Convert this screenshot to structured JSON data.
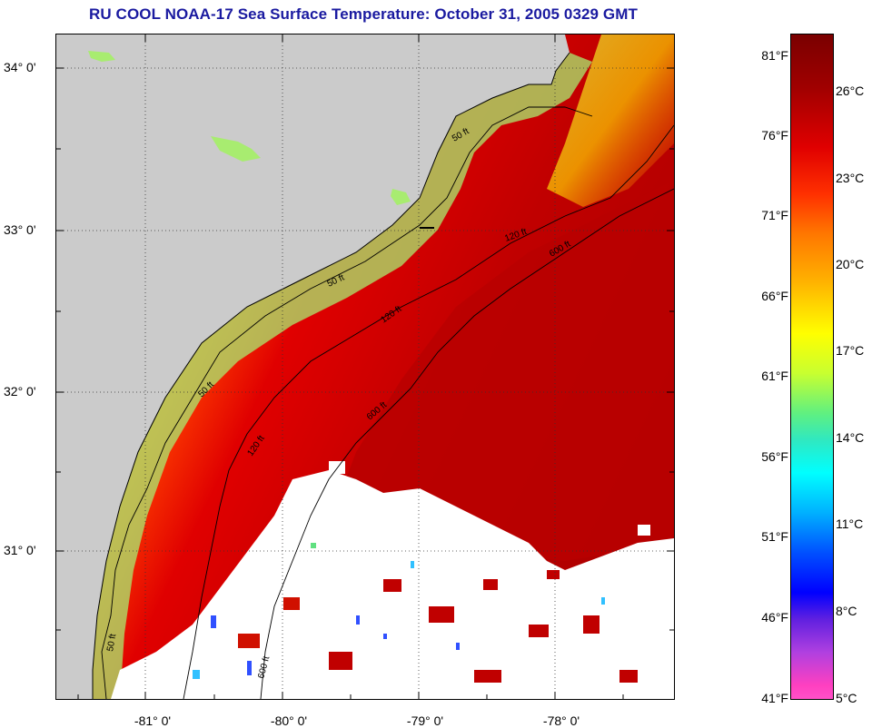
{
  "title": "RU COOL  NOAA-17  Sea Surface Temperature:  October 31, 2005 0329 GMT",
  "map": {
    "lat_labels": [
      "34° 0'",
      "33° 0'",
      "32° 0'",
      "31° 0'"
    ],
    "lon_labels": [
      "-81° 0'",
      "-80° 0'",
      "-79° 0'",
      "-78° 0'"
    ],
    "isobath_labels": [
      "50 ft",
      "120 ft",
      "600 ft"
    ],
    "land_color": "#cbcbcb",
    "cloud_color": "#ffffff"
  },
  "colorbar": {
    "fahrenheit": [
      "81°F",
      "76°F",
      "71°F",
      "66°F",
      "61°F",
      "56°F",
      "51°F",
      "46°F",
      "41°F"
    ],
    "celsius": [
      "26°C",
      "23°C",
      "20°C",
      "17°C",
      "14°C",
      "11°C",
      "8°C",
      "5°C"
    ]
  }
}
